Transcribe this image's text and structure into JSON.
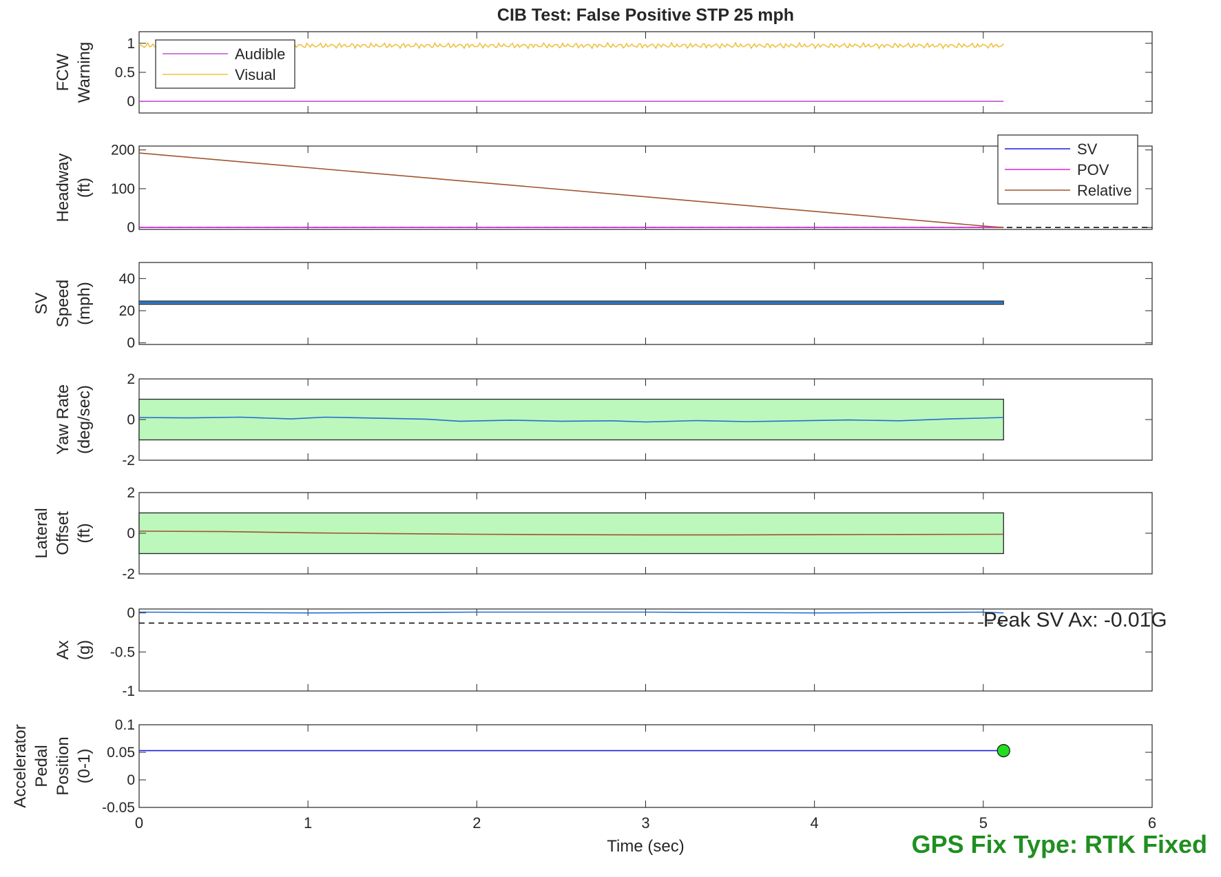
{
  "footer": {
    "gps_fix": "GPS Fix Type: RTK Fixed"
  },
  "colors": {
    "green": "#1f8f1f",
    "band_fill": "#bcf7bc",
    "line_blue": "#1f6fd0"
  },
  "chart_data": [
    {
      "type": "line",
      "title": "CIB Test: False Positive STP 25 mph",
      "ylabel": [
        "FCW",
        "Warning"
      ],
      "xlim": [
        0,
        6
      ],
      "ylim": [
        -0.2,
        1.2
      ],
      "yticks": [
        0,
        0.5,
        1
      ],
      "ytick_labels": [
        "0",
        "0.5",
        "1"
      ],
      "legend": {
        "position": "top-left",
        "entries": [
          "Audible",
          "Visual"
        ]
      },
      "series": [
        {
          "name": "Audible",
          "color": "#c050d0",
          "x": [
            0,
            5.12
          ],
          "y": [
            0,
            0
          ]
        },
        {
          "name": "Visual",
          "color": "#f0c040",
          "noisy": true,
          "x": [
            0,
            5.12
          ],
          "y": [
            0.96,
            0.96
          ]
        }
      ]
    },
    {
      "type": "line",
      "ylabel": [
        "Headway",
        "(ft)"
      ],
      "xlim": [
        0,
        6
      ],
      "ylim": [
        -5,
        210
      ],
      "yticks": [
        0,
        100,
        200
      ],
      "ytick_labels": [
        "0",
        "100",
        "200"
      ],
      "legend": {
        "position": "top-right",
        "entries": [
          "SV",
          "POV",
          "Relative"
        ]
      },
      "series": [
        {
          "name": "SV",
          "color": "#1a1adf",
          "x": [
            0,
            5.12
          ],
          "y": [
            0,
            0
          ]
        },
        {
          "name": "POV",
          "color": "#e020e0",
          "x": [
            0,
            5.12
          ],
          "y": [
            0,
            0
          ]
        },
        {
          "name": "Relative",
          "color": "#a0522d",
          "x": [
            0,
            5.05,
            5.12
          ],
          "y": [
            192,
            2,
            0
          ]
        }
      ],
      "reference_lines": [
        {
          "y": 0,
          "style": "dashed"
        }
      ]
    },
    {
      "type": "line",
      "ylabel": [
        "SV",
        "Speed",
        "(mph)"
      ],
      "xlim": [
        0,
        6
      ],
      "ylim": [
        -1,
        50
      ],
      "yticks": [
        0,
        20,
        40
      ],
      "ytick_labels": [
        "0",
        "20",
        "40"
      ],
      "band": {
        "x": [
          0,
          5.12
        ],
        "y": [
          24,
          26
        ]
      },
      "series": [
        {
          "color": "#1f6fd0",
          "x": [
            0,
            5.12
          ],
          "y": [
            25,
            25
          ]
        }
      ]
    },
    {
      "type": "line",
      "ylabel": [
        "Yaw Rate",
        "(deg/sec)"
      ],
      "xlim": [
        0,
        6
      ],
      "ylim": [
        -2,
        2
      ],
      "yticks": [
        -2,
        0,
        2
      ],
      "ytick_labels": [
        "-2",
        "0",
        "2"
      ],
      "band": {
        "x": [
          0,
          5.12
        ],
        "y": [
          -1,
          1
        ]
      },
      "series": [
        {
          "color": "#1f6fd0",
          "x": [
            0,
            0.3,
            0.6,
            0.9,
            1.1,
            1.4,
            1.7,
            1.9,
            2.2,
            2.5,
            2.8,
            3.0,
            3.3,
            3.6,
            3.9,
            4.2,
            4.5,
            4.8,
            5.12
          ],
          "y": [
            0.1,
            0.08,
            0.12,
            0.03,
            0.12,
            0.07,
            0.02,
            -0.08,
            -0.03,
            -0.08,
            -0.06,
            -0.12,
            -0.05,
            -0.1,
            -0.06,
            -0.02,
            -0.06,
            0.03,
            0.1
          ]
        }
      ]
    },
    {
      "type": "line",
      "ylabel": [
        "Lateral",
        "Offset",
        "(ft)"
      ],
      "xlim": [
        0,
        6
      ],
      "ylim": [
        -2,
        2
      ],
      "yticks": [
        -2,
        0,
        2
      ],
      "ytick_labels": [
        "-2",
        "0",
        "2"
      ],
      "band": {
        "x": [
          0,
          5.12
        ],
        "y": [
          -1,
          1
        ]
      },
      "series": [
        {
          "color": "#a0522d",
          "x": [
            0,
            0.5,
            1.0,
            1.5,
            2.0,
            2.5,
            3.0,
            3.5,
            4.0,
            4.5,
            5.12
          ],
          "y": [
            0.1,
            0.08,
            0.02,
            -0.02,
            -0.05,
            -0.07,
            -0.08,
            -0.08,
            -0.07,
            -0.06,
            -0.05
          ]
        }
      ]
    },
    {
      "type": "line",
      "ylabel": [
        "Ax",
        "(g)"
      ],
      "xlim": [
        0,
        6
      ],
      "ylim": [
        -1,
        0.05
      ],
      "yticks": [
        -1,
        -0.5,
        0
      ],
      "ytick_labels": [
        "-1",
        "-0.5",
        "0"
      ],
      "reference_lines": [
        {
          "y": -0.13,
          "style": "dashed",
          "x": [
            0,
            5.12
          ]
        }
      ],
      "annotation": {
        "text": "Peak SV Ax: -0.01G",
        "x": 5.0,
        "y": -0.085
      },
      "series": [
        {
          "color": "#1f6fd0",
          "x": [
            0,
            1,
            2,
            3,
            4,
            5,
            5.12
          ],
          "y": [
            0.01,
            0.0,
            0.01,
            0.01,
            0.0,
            0.01,
            0.0
          ]
        }
      ]
    },
    {
      "type": "line",
      "ylabel": [
        "Accelerator",
        "Pedal",
        "Position",
        "(0-1)"
      ],
      "xlabel": "Time (sec)",
      "xlim": [
        0,
        6
      ],
      "ylim": [
        -0.05,
        0.1
      ],
      "yticks": [
        -0.05,
        0,
        0.05,
        0.1
      ],
      "ytick_labels": [
        "-0.05",
        "0",
        "0.05",
        "0.1"
      ],
      "xticks": [
        0,
        1,
        2,
        3,
        4,
        5,
        6
      ],
      "xtick_labels": [
        "0",
        "1",
        "2",
        "3",
        "4",
        "5",
        "6"
      ],
      "series": [
        {
          "color": "#1a1adf",
          "x": [
            0,
            5.12
          ],
          "y": [
            0.053,
            0.053
          ]
        }
      ],
      "marker": {
        "x": 5.12,
        "y": 0.053,
        "color": "#22dd22"
      }
    }
  ]
}
